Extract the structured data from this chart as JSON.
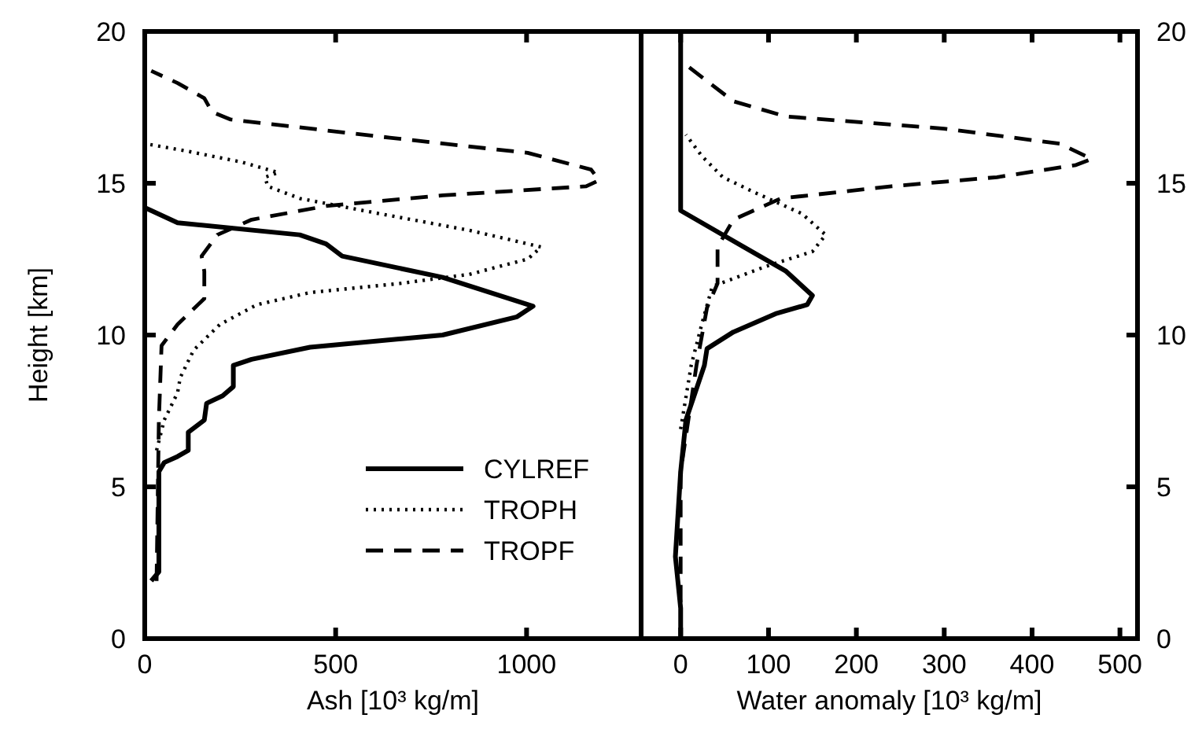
{
  "chart_data": [
    {
      "type": "line",
      "xlabel": "Ash [10³ kg/m]",
      "ylabel": "Height [km]",
      "xlim": [
        0,
        1300
      ],
      "xticks": [
        0,
        500,
        1000
      ],
      "ylim": [
        0,
        20
      ],
      "yticks": [
        0,
        5,
        10,
        15,
        20
      ],
      "legend": "bottom right",
      "grid": false,
      "series": [
        {
          "name": "CYLREF",
          "color": "#000000",
          "line_style": "solid",
          "x": [
            17,
            37,
            37,
            51,
            86,
            114,
            114,
            156,
            162,
            204,
            232,
            232,
            280,
            433,
            780,
            975,
            1017,
            780,
            517,
            475,
            406,
            86,
            17,
            0
          ],
          "values": [
            1.9,
            2.2,
            5.5,
            5.8,
            6.0,
            6.2,
            6.8,
            7.2,
            7.75,
            8.0,
            8.3,
            9.0,
            9.2,
            9.6,
            10.0,
            10.6,
            10.95,
            11.9,
            12.6,
            13.0,
            13.3,
            13.7,
            14.1,
            14.2
          ]
        },
        {
          "name": "TROPH",
          "color": "#000000",
          "line_style": "dotted",
          "x": [
            31,
            51,
            86,
            93,
            128,
            197,
            294,
            433,
            669,
            850,
            1003,
            1038,
            850,
            614,
            406,
            322,
            315,
            350,
            253,
            114,
            3
          ],
          "values": [
            6.2,
            7.2,
            8.1,
            8.6,
            9.5,
            10.35,
            11.0,
            11.4,
            11.7,
            12.0,
            12.5,
            12.9,
            13.45,
            14.0,
            14.5,
            14.9,
            15.2,
            15.35,
            15.7,
            16.05,
            16.3
          ]
        },
        {
          "name": "TROPF",
          "color": "#000000",
          "line_style": "dashed",
          "x": [
            31,
            37,
            44,
            86,
            156,
            156,
            149,
            190,
            280,
            475,
            780,
            1156,
            1190,
            1169,
            1003,
            642,
            225,
            176,
            156,
            86,
            17
          ],
          "values": [
            1.9,
            7.2,
            9.65,
            10.35,
            11.2,
            12.1,
            12.6,
            13.3,
            13.8,
            14.25,
            14.6,
            14.9,
            15.1,
            15.45,
            16.0,
            16.5,
            17.1,
            17.35,
            17.8,
            18.3,
            18.7
          ]
        }
      ]
    },
    {
      "type": "line",
      "xlabel": "Water anomaly [10³ kg/m]",
      "xlim": [
        -45,
        520
      ],
      "xticks": [
        0,
        100,
        200,
        300,
        400,
        500
      ],
      "y2lim": [
        0,
        20
      ],
      "y2ticks": [
        0,
        5,
        10,
        15,
        20
      ],
      "legend": false,
      "grid": false,
      "series": [
        {
          "color": "#000000",
          "line_style": "solid",
          "axis": "y2",
          "x": [
            0,
            0,
            -6,
            0,
            6,
            27,
            30,
            60,
            108,
            144,
            150,
            120,
            72,
            0,
            0
          ],
          "values": [
            0,
            1.0,
            2.7,
            5.5,
            7.2,
            9.0,
            9.55,
            10.1,
            10.7,
            11.0,
            11.3,
            12.1,
            12.9,
            14.1,
            20
          ]
        },
        {
          "color": "#000000",
          "line_style": "dotted",
          "axis": "y2",
          "x": [
            0,
            12,
            24,
            36,
            96,
            150,
            165,
            138,
            84,
            48,
            24,
            6
          ],
          "values": [
            6.9,
            9.0,
            10.35,
            11.6,
            12.25,
            12.75,
            13.3,
            14.0,
            14.7,
            15.2,
            15.9,
            16.6
          ]
        },
        {
          "color": "#000000",
          "line_style": "dashed",
          "axis": "y2",
          "x": [
            0,
            0,
            18,
            30,
            42,
            42,
            60,
            114,
            240,
            360,
            450,
            468,
            432,
            300,
            120,
            60,
            6
          ],
          "values": [
            1.2,
            5.5,
            9.0,
            10.9,
            11.7,
            12.9,
            13.8,
            14.5,
            14.9,
            15.2,
            15.6,
            15.8,
            16.3,
            16.8,
            17.2,
            17.7,
            18.9
          ]
        }
      ]
    }
  ]
}
